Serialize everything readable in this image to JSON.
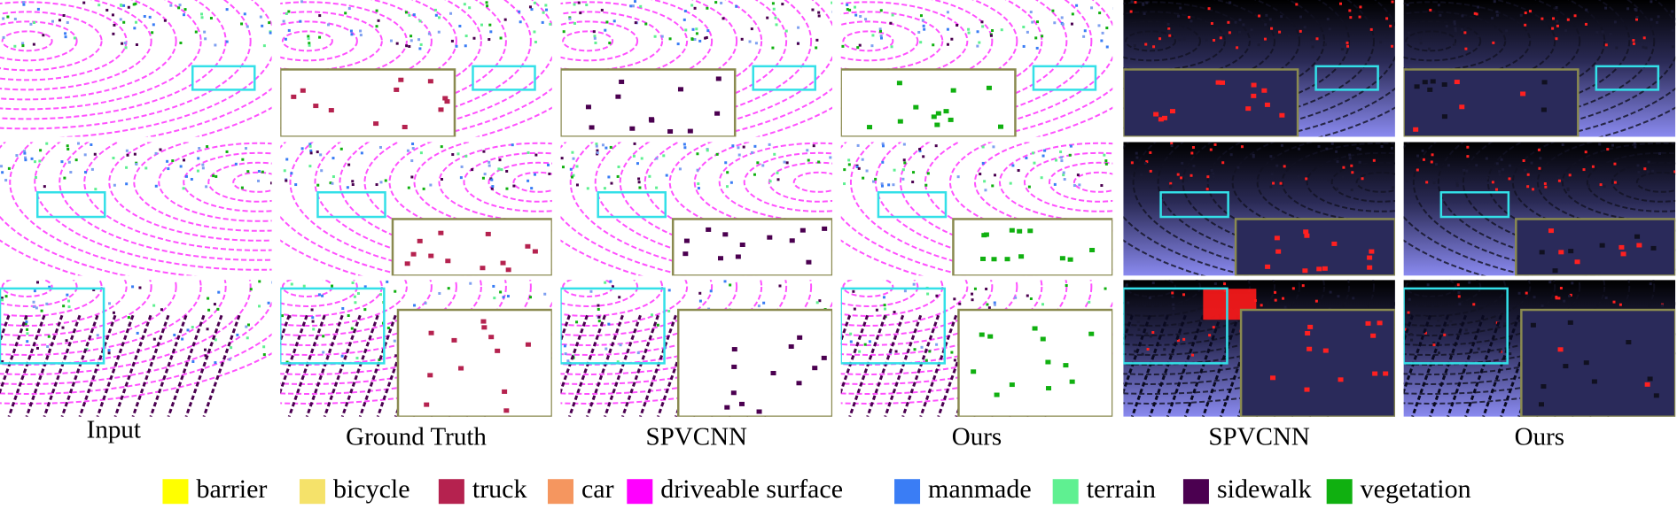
{
  "columns": [
    "Input",
    "Ground Truth",
    "SPVCNN",
    "Ours",
    "SPVCNN",
    "Ours"
  ],
  "legend": [
    {
      "label": "barrier",
      "color": "#ffff00"
    },
    {
      "label": "bicycle",
      "color": "#f5e26a"
    },
    {
      "label": "truck",
      "color": "#b5224f"
    },
    {
      "label": "car",
      "color": "#f5965f"
    },
    {
      "label": "driveable surface",
      "color": "#ff00ff"
    },
    {
      "label": "manmade",
      "color": "#3a7df5"
    },
    {
      "label": "terrain",
      "color": "#5ff091"
    },
    {
      "label": "sidewalk",
      "color": "#4b0050"
    },
    {
      "label": "vegetation",
      "color": "#10b010"
    }
  ]
}
